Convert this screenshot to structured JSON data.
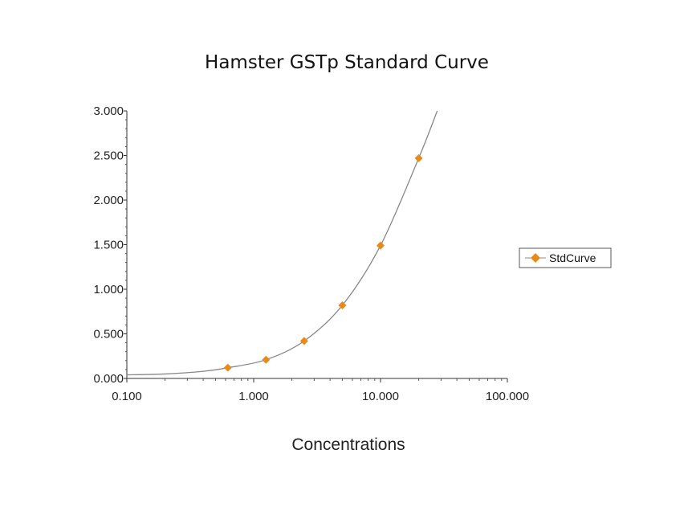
{
  "chart_data": {
    "type": "scatter",
    "title": "Hamster GSTp Standard Curve",
    "xlabel": "Concentrations",
    "ylabel": "",
    "xscale": "log",
    "xlim": [
      0.1,
      100
    ],
    "ylim": [
      0,
      3
    ],
    "x_ticks": [
      "0.100",
      "1.000",
      "10.000",
      "100.000"
    ],
    "y_ticks": [
      "0.000",
      "0.500",
      "1.000",
      "1.500",
      "2.000",
      "2.500",
      "3.000"
    ],
    "grid": false,
    "legend_position": "right",
    "series": [
      {
        "name": "StdCurve",
        "marker": "diamond",
        "color": "#e88a1a",
        "x": [
          0.625,
          1.25,
          2.5,
          5,
          10,
          20
        ],
        "y": [
          0.12,
          0.21,
          0.42,
          0.82,
          1.49,
          2.47
        ]
      }
    ],
    "fit_curve": {
      "color": "#888888",
      "x": [
        0.1,
        0.2,
        0.4,
        0.625,
        1.25,
        2.5,
        5,
        10,
        20,
        28
      ],
      "y": [
        0.04,
        0.05,
        0.08,
        0.12,
        0.21,
        0.42,
        0.82,
        1.49,
        2.47,
        3.0
      ]
    }
  }
}
